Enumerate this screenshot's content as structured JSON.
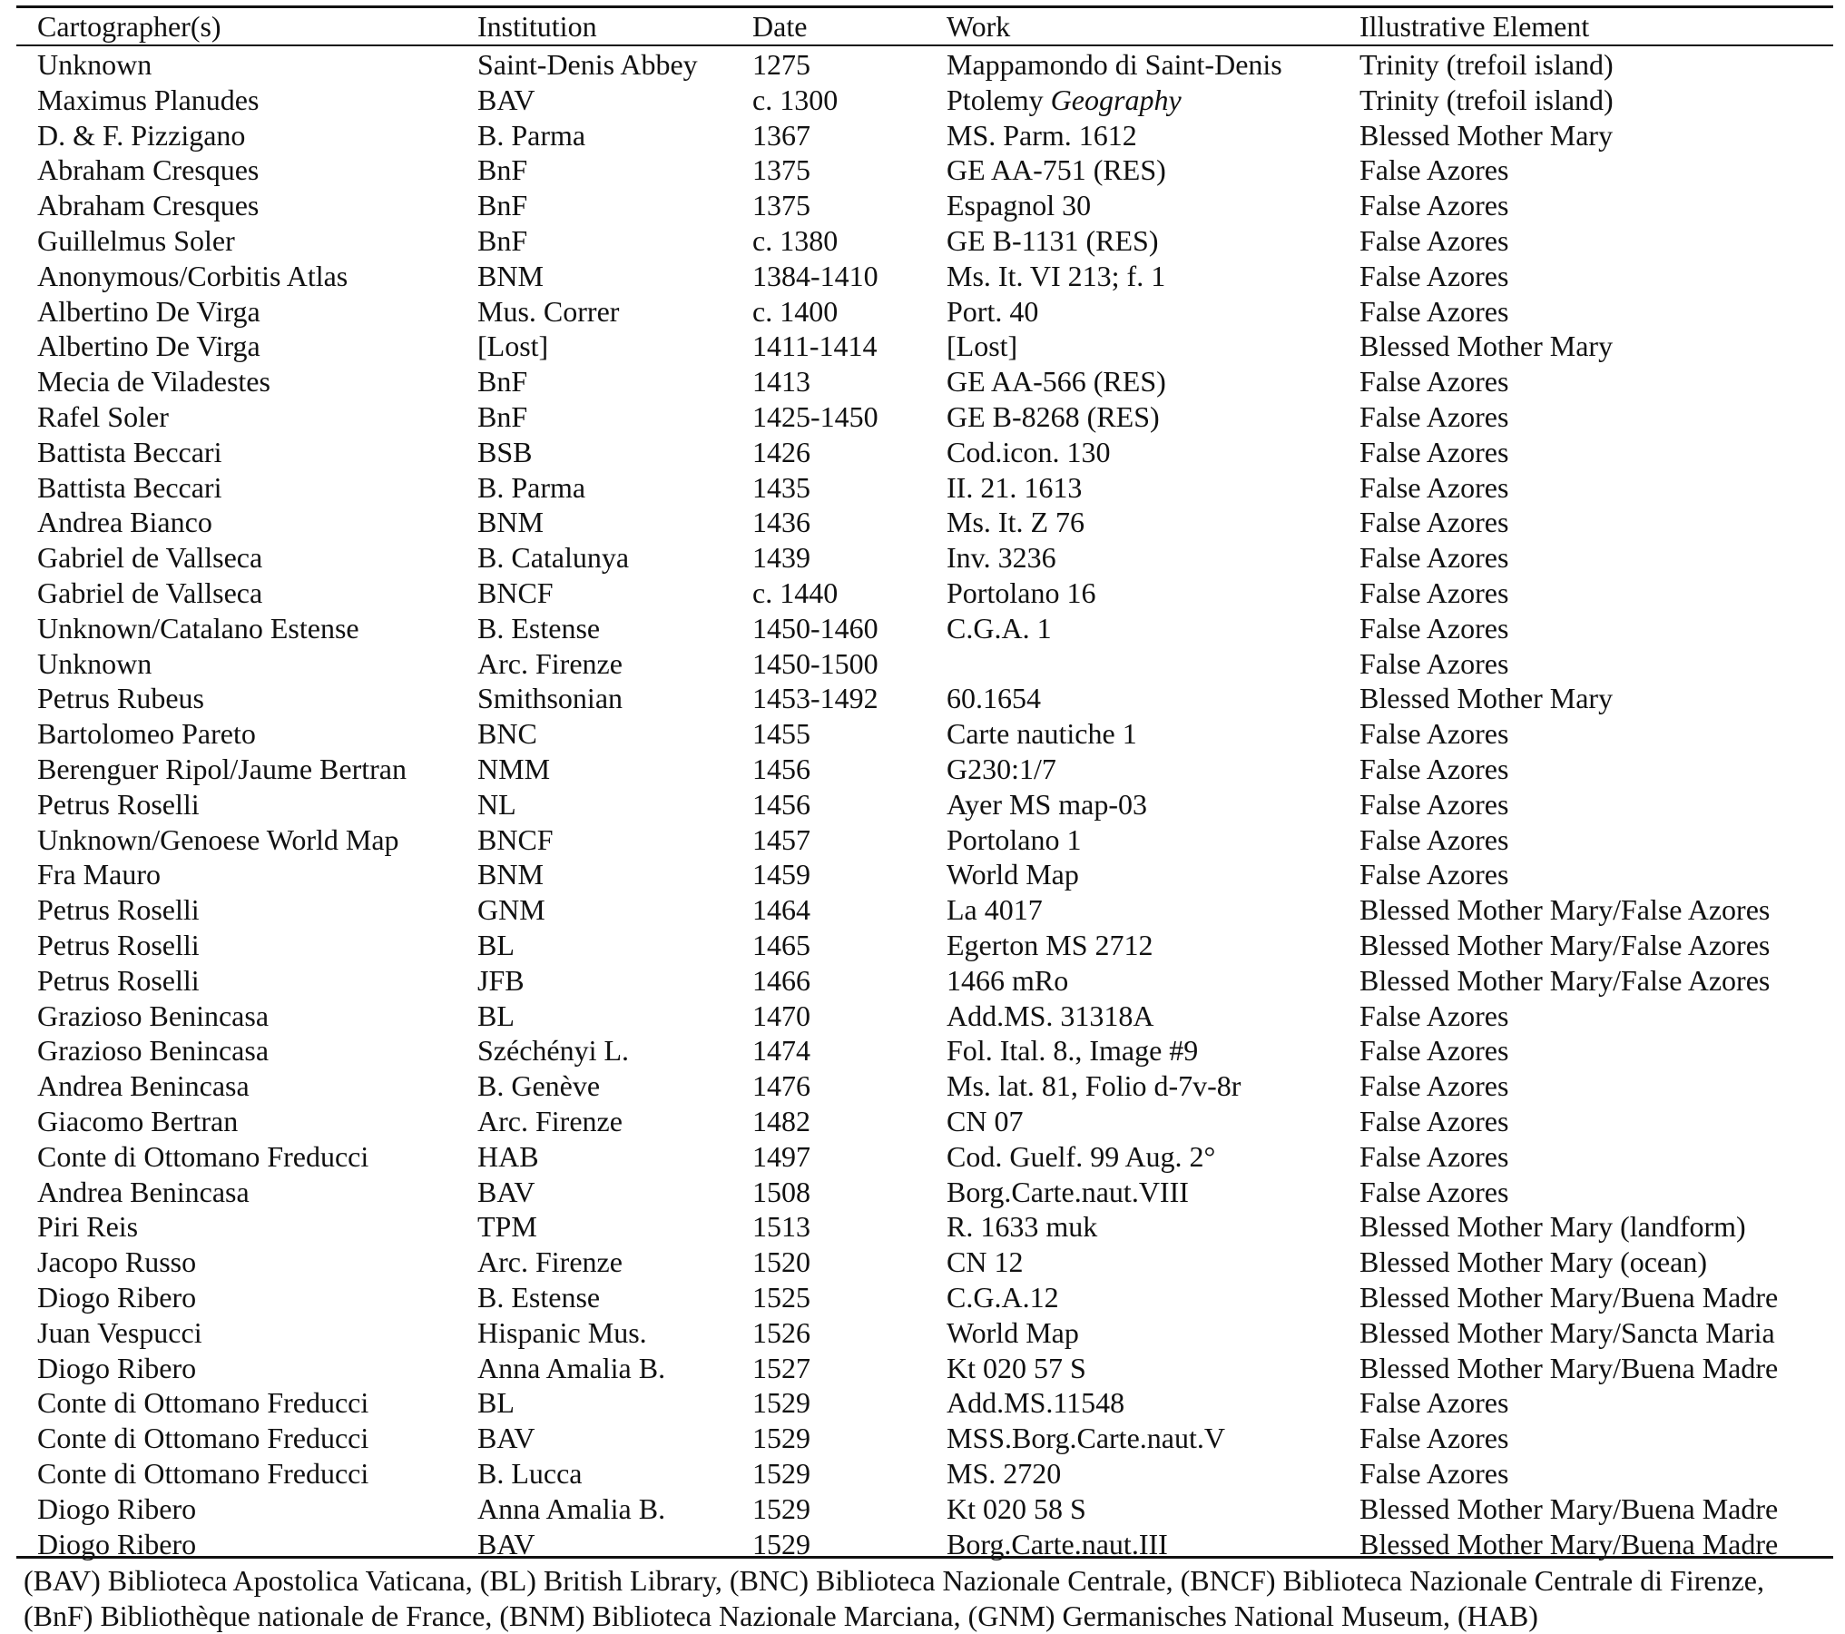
{
  "table": {
    "headers": [
      "Cartographer(s)",
      "Institution",
      "Date",
      "Work",
      "Illustrative Element"
    ],
    "rows": [
      [
        "Unknown",
        "Saint-Denis Abbey",
        "1275",
        "Mappamondo di Saint-Denis",
        "Trinity (trefoil island)"
      ],
      [
        "Maximus Planudes",
        "BAV",
        "c. 1300",
        "Ptolemy |Geography",
        "Trinity (trefoil island)"
      ],
      [
        "D. & F. Pizzigano",
        "B. Parma",
        "1367",
        "MS. Parm. 1612",
        "Blessed Mother Mary"
      ],
      [
        "Abraham Cresques",
        "BnF",
        "1375",
        "GE AA-751 (RES)",
        "False Azores"
      ],
      [
        "Abraham Cresques",
        "BnF",
        "1375",
        "Espagnol 30",
        "False Azores"
      ],
      [
        "Guillelmus Soler",
        "BnF",
        "c. 1380",
        "GE B-1131 (RES)",
        "False Azores"
      ],
      [
        "Anonymous/Corbitis Atlas",
        "BNM",
        "1384-1410",
        "Ms. It. VI 213; f. 1",
        "False Azores"
      ],
      [
        "Albertino De Virga",
        "Mus. Correr",
        "c. 1400",
        "Port. 40",
        "False Azores"
      ],
      [
        "Albertino De Virga",
        "[Lost]",
        "1411-1414",
        "[Lost]",
        "Blessed Mother Mary"
      ],
      [
        "Mecia de Viladestes",
        "BnF",
        "1413",
        "GE AA-566 (RES)",
        "False Azores"
      ],
      [
        "Rafel Soler",
        "BnF",
        "1425-1450",
        "GE B-8268 (RES)",
        "False Azores"
      ],
      [
        "Battista Beccari",
        "BSB",
        "1426",
        "Cod.icon. 130",
        "False Azores"
      ],
      [
        "Battista Beccari",
        "B. Parma",
        "1435",
        "II. 21. 1613",
        "False Azores"
      ],
      [
        "Andrea Bianco",
        "BNM",
        "1436",
        "Ms. It. Z 76",
        "False Azores"
      ],
      [
        "Gabriel de Vallseca",
        "B. Catalunya",
        "1439",
        "Inv. 3236",
        "False Azores"
      ],
      [
        "Gabriel de Vallseca",
        "BNCF",
        "c. 1440",
        "Portolano 16",
        "False Azores"
      ],
      [
        "Unknown/Catalano Estense",
        "B. Estense",
        "1450-1460",
        "C.G.A. 1",
        "False Azores"
      ],
      [
        "Unknown",
        "Arc. Firenze",
        "1450-1500",
        "",
        "False Azores"
      ],
      [
        "Petrus Rubeus",
        "Smithsonian",
        "1453-1492",
        "60.1654",
        "Blessed Mother Mary"
      ],
      [
        "Bartolomeo Pareto",
        "BNC",
        "1455",
        "Carte nautiche 1",
        "False Azores"
      ],
      [
        "Berenguer Ripol/Jaume Bertran",
        "NMM",
        "1456",
        "G230:1/7",
        "False Azores"
      ],
      [
        "Petrus Roselli",
        "NL",
        "1456",
        "Ayer MS map-03",
        "False Azores"
      ],
      [
        "Unknown/Genoese World Map",
        "BNCF",
        "1457",
        "Portolano 1",
        "False Azores"
      ],
      [
        "Fra Mauro",
        "BNM",
        "1459",
        "World Map",
        "False Azores"
      ],
      [
        "Petrus Roselli",
        "GNM",
        "1464",
        "La 4017",
        "Blessed Mother Mary/False Azores"
      ],
      [
        "Petrus Roselli",
        "BL",
        "1465",
        "Egerton MS 2712",
        "Blessed Mother Mary/False Azores"
      ],
      [
        "Petrus Roselli",
        "JFB",
        "1466",
        "1466 mRo",
        "Blessed Mother Mary/False Azores"
      ],
      [
        "Grazioso Benincasa",
        "BL",
        "1470",
        "Add.MS. 31318A",
        "False Azores"
      ],
      [
        "Grazioso Benincasa",
        "Széchényi L.",
        "1474",
        "Fol. Ital. 8., Image #9",
        "False Azores"
      ],
      [
        "Andrea Benincasa",
        "B. Genève",
        "1476",
        "Ms. lat. 81, Folio d-7v-8r",
        "False Azores"
      ],
      [
        "Giacomo Bertran",
        "Arc. Firenze",
        "1482",
        "CN 07",
        "False Azores"
      ],
      [
        "Conte di Ottomano Freducci",
        "HAB",
        "1497",
        "Cod. Guelf. 99 Aug. 2°",
        "False Azores"
      ],
      [
        "Andrea Benincasa",
        "BAV",
        "1508",
        "Borg.Carte.naut.VIII",
        "False Azores"
      ],
      [
        "Piri Reis",
        "TPM",
        "1513",
        "R. 1633 muk",
        "Blessed Mother Mary (landform)"
      ],
      [
        "Jacopo Russo",
        "Arc. Firenze",
        "1520",
        "CN 12",
        "Blessed Mother Mary (ocean)"
      ],
      [
        "Diogo Ribero",
        "B. Estense",
        "1525",
        "C.G.A.12",
        "Blessed Mother Mary/Buena Madre"
      ],
      [
        "Juan Vespucci",
        "Hispanic Mus.",
        "1526",
        "World Map",
        "Blessed Mother Mary/Sancta Maria"
      ],
      [
        "Diogo Ribero",
        "Anna Amalia B.",
        "1527",
        "Kt 020 57 S",
        "Blessed Mother Mary/Buena Madre"
      ],
      [
        "Conte di Ottomano Freducci",
        "BL",
        "1529",
        "Add.MS.11548",
        "False Azores"
      ],
      [
        "Conte di Ottomano Freducci",
        "BAV",
        "1529",
        "MSS.Borg.Carte.naut.V",
        "False Azores"
      ],
      [
        "Conte di Ottomano Freducci",
        "B. Lucca",
        "1529",
        "MS. 2720",
        "False Azores"
      ],
      [
        "Diogo Ribero",
        "Anna Amalia B.",
        "1529",
        "Kt 020 58 S",
        "Blessed Mother Mary/Buena Madre"
      ],
      [
        "Diogo Ribero",
        "BAV",
        "1529",
        "Borg.Carte.naut.III",
        "Blessed Mother Mary/Buena Madre"
      ]
    ]
  },
  "footnote": "(BAV) Biblioteca Apostolica Vaticana, (BL) British Library, (BNC) Biblioteca Nazionale Centrale, (BNCF) Biblioteca Nazionale Centrale di Firenze, (BnF) Bibliothèque nationale de France, (BNM) Biblioteca Nazionale Marciana, (GNM) Germanisches National Museum, (HAB)"
}
